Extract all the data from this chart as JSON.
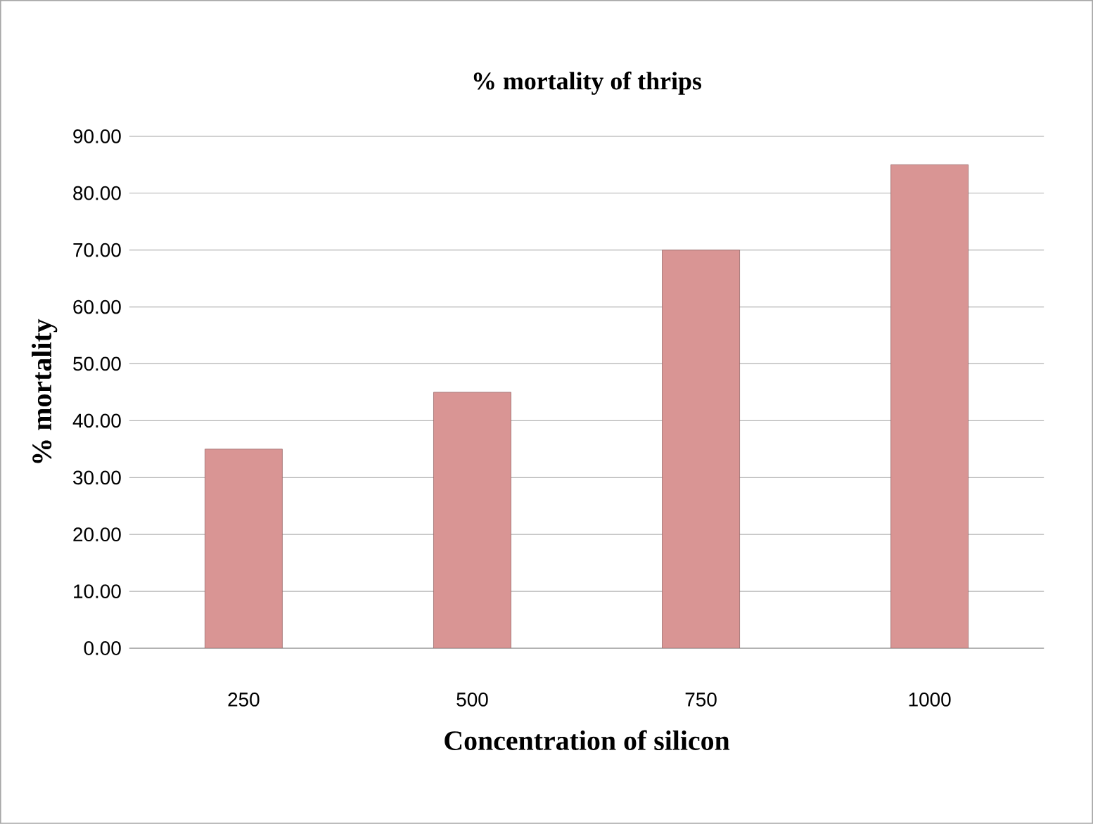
{
  "chart_data": {
    "type": "bar",
    "title": "% mortality of thrips",
    "xlabel": "Concentration of silicon",
    "ylabel": "%    mortality",
    "categories": [
      "250",
      "500",
      "750",
      "1000"
    ],
    "values": [
      35,
      45,
      70,
      85
    ],
    "color": "#d99594",
    "ylim": [
      0,
      90
    ],
    "yticks": [
      {
        "value": 0,
        "label": "0.00"
      },
      {
        "value": 10,
        "label": "10.00"
      },
      {
        "value": 20,
        "label": "20.00"
      },
      {
        "value": 30,
        "label": "30.00"
      },
      {
        "value": 40,
        "label": "40.00"
      },
      {
        "value": 50,
        "label": "50.00"
      },
      {
        "value": 60,
        "label": "60.00"
      },
      {
        "value": 70,
        "label": "70.00"
      },
      {
        "value": 80,
        "label": "80.00"
      },
      {
        "value": 90,
        "label": "90.00"
      }
    ],
    "grid": "y"
  }
}
